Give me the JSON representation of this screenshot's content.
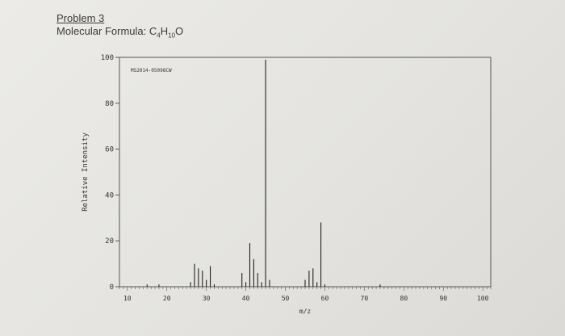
{
  "header": {
    "problem_title": "Problem 3",
    "formula_label": "Molecular Formula: ",
    "formula_parts": [
      {
        "text": "C",
        "sub": false
      },
      {
        "text": "4",
        "sub": true
      },
      {
        "text": "H",
        "sub": false
      },
      {
        "text": "10",
        "sub": true
      },
      {
        "text": "O",
        "sub": false
      }
    ]
  },
  "chart_data": {
    "type": "bar",
    "title": "",
    "annotation": "MS2014-05098CW",
    "xlabel": "m/z",
    "ylabel": "Relative Intensity",
    "xlim": [
      8,
      102
    ],
    "ylim": [
      0,
      100
    ],
    "x_ticks": [
      10,
      20,
      30,
      40,
      50,
      60,
      70,
      80,
      90,
      100
    ],
    "y_ticks": [
      0,
      20,
      40,
      60,
      80,
      100
    ],
    "grid": false,
    "peaks": [
      {
        "mz": 15,
        "intensity": 1
      },
      {
        "mz": 18,
        "intensity": 1
      },
      {
        "mz": 26,
        "intensity": 2
      },
      {
        "mz": 27,
        "intensity": 10
      },
      {
        "mz": 28,
        "intensity": 8
      },
      {
        "mz": 29,
        "intensity": 7
      },
      {
        "mz": 30,
        "intensity": 3
      },
      {
        "mz": 31,
        "intensity": 9
      },
      {
        "mz": 32,
        "intensity": 1
      },
      {
        "mz": 39,
        "intensity": 6
      },
      {
        "mz": 40,
        "intensity": 2
      },
      {
        "mz": 41,
        "intensity": 19
      },
      {
        "mz": 42,
        "intensity": 12
      },
      {
        "mz": 43,
        "intensity": 6
      },
      {
        "mz": 44,
        "intensity": 2
      },
      {
        "mz": 45,
        "intensity": 99
      },
      {
        "mz": 46,
        "intensity": 3
      },
      {
        "mz": 55,
        "intensity": 3
      },
      {
        "mz": 56,
        "intensity": 7
      },
      {
        "mz": 57,
        "intensity": 8
      },
      {
        "mz": 58,
        "intensity": 2
      },
      {
        "mz": 59,
        "intensity": 28
      },
      {
        "mz": 60,
        "intensity": 1
      },
      {
        "mz": 74,
        "intensity": 1
      }
    ]
  }
}
